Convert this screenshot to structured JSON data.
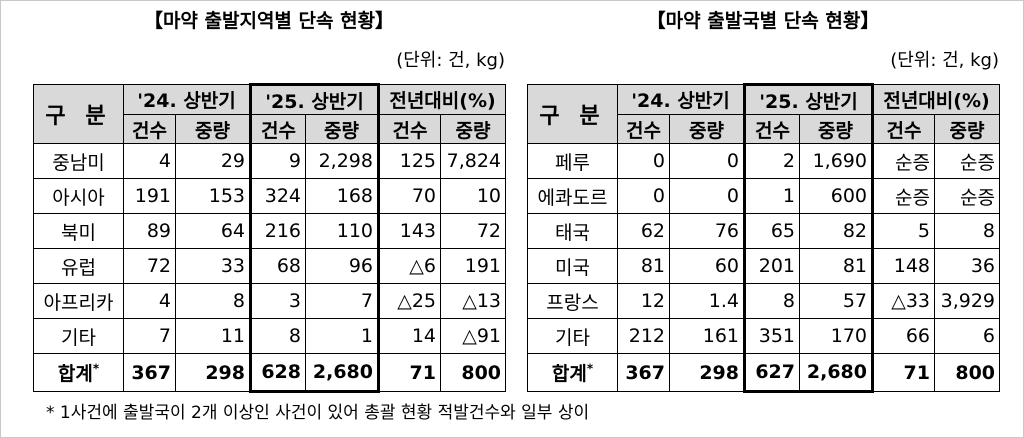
{
  "tables": [
    {
      "title": "【마약 출발지역별 단속 현황】",
      "unit": "(단위: 건, kg)",
      "corner": "구  분",
      "groups": [
        "'24. 상반기",
        "'25. 상반기",
        "전년대비(%)"
      ],
      "sub_headers": [
        "건수",
        "중량",
        "건수",
        "중량",
        "건수",
        "중량"
      ],
      "rows": [
        [
          "중남미",
          "4",
          "29",
          "9",
          "2,298",
          "125",
          "7,824"
        ],
        [
          "아시아",
          "191",
          "153",
          "324",
          "168",
          "70",
          "10"
        ],
        [
          "북미",
          "89",
          "64",
          "216",
          "110",
          "143",
          "72"
        ],
        [
          "유럽",
          "72",
          "33",
          "68",
          "96",
          "△6",
          "191"
        ],
        [
          "아프리카",
          "4",
          "8",
          "3",
          "7",
          "△25",
          "△13"
        ],
        [
          "기타",
          "7",
          "11",
          "8",
          "1",
          "14",
          "△91"
        ]
      ],
      "total": {
        "label": "합계",
        "mark": "*",
        "values": [
          "367",
          "298",
          "628",
          "2,680",
          "71",
          "800"
        ]
      }
    },
    {
      "title": "【마약 출발국별 단속 현황】",
      "unit": "(단위: 건, kg)",
      "corner": "구  분",
      "groups": [
        "'24. 상반기",
        "'25. 상반기",
        "전년대비(%)"
      ],
      "sub_headers": [
        "건수",
        "중량",
        "건수",
        "중량",
        "건수",
        "중량"
      ],
      "rows": [
        [
          "페루",
          "0",
          "0",
          "2",
          "1,690",
          "순증",
          "순증"
        ],
        [
          "에콰도르",
          "0",
          "0",
          "1",
          "600",
          "순증",
          "순증"
        ],
        [
          "태국",
          "62",
          "76",
          "65",
          "82",
          "5",
          "8"
        ],
        [
          "미국",
          "81",
          "60",
          "201",
          "81",
          "148",
          "36"
        ],
        [
          "프랑스",
          "12",
          "1.4",
          "8",
          "57",
          "△33",
          "3,929"
        ],
        [
          "기타",
          "212",
          "161",
          "351",
          "170",
          "66",
          "6"
        ]
      ],
      "total": {
        "label": "합계",
        "mark": "*",
        "values": [
          "367",
          "298",
          "627",
          "2,680",
          "71",
          "800"
        ]
      }
    }
  ],
  "footnote": "* 1사건에 출발국이 2개 이상인 사건이 있어 총괄 현황 적발건수와 일부 상이"
}
